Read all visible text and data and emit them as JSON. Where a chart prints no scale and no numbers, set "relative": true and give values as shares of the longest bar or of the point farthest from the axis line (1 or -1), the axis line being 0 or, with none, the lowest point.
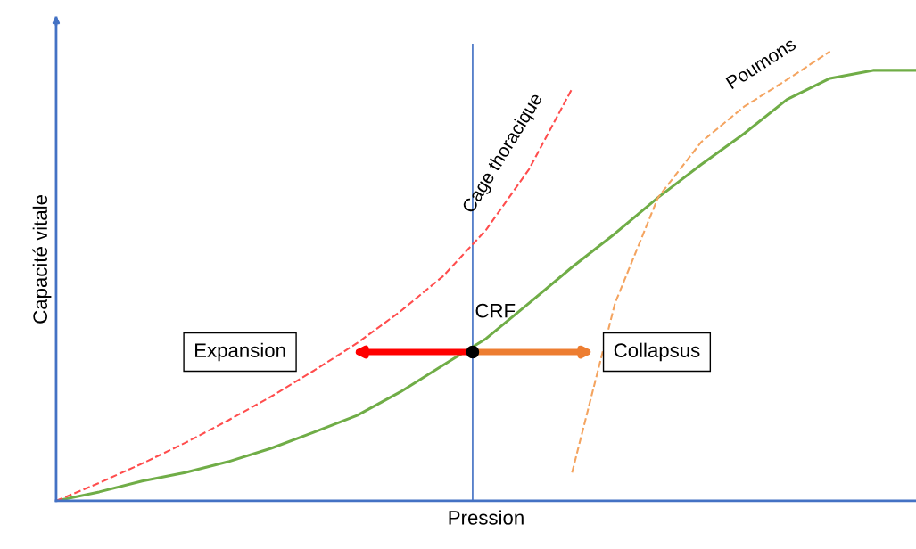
{
  "chart_data": {
    "type": "line",
    "relative": true,
    "xlabel": "Pression",
    "ylabel": "Capacité vitale",
    "categories": [
      null,
      null,
      null,
      null,
      null,
      null,
      null,
      null,
      null,
      null,
      null,
      null,
      null,
      null,
      null,
      null,
      null,
      null,
      null,
      null,
      null
    ],
    "series": [
      {
        "color": "#70ad47",
        "values": [
          0,
          0.02,
          0.044,
          0.063,
          0.087,
          0.117,
          0.153,
          0.19,
          0.242,
          0.302,
          0.361,
          0.44,
          0.52,
          0.595,
          0.675,
          0.748,
          0.817,
          0.893,
          0.94,
          0.958,
          0.958
        ]
      },
      {
        "name": "Cage thoracique",
        "color": "#ff4d4d",
        "line_style": "dashed",
        "values": [
          0,
          0.04,
          0.083,
          0.129,
          0.179,
          0.232,
          0.29,
          0.351,
          0.421,
          0.5,
          0.603,
          0.738,
          0.917,
          null,
          null,
          null,
          null,
          null,
          null,
          null,
          null
        ]
      },
      {
        "name": "Poumons",
        "color": "#f4a460",
        "line_style": "dashed",
        "values": [
          null,
          null,
          null,
          null,
          null,
          null,
          null,
          null,
          null,
          null,
          null,
          null,
          0.063,
          0.44,
          0.675,
          0.798,
          0.877,
          0.937,
          1,
          null,
          null
        ]
      }
    ],
    "annotations": [
      "Expansion",
      "Collapsus",
      "CRF"
    ]
  }
}
